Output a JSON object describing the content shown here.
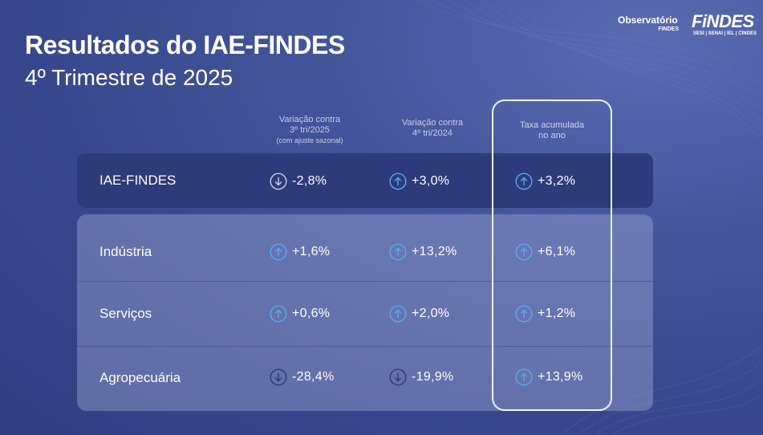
{
  "title": "Resultados do IAE-FINDES",
  "subtitle": "4º Trimestre de 2025",
  "logos": {
    "observatorio_main": "Observatório",
    "observatorio_sub": "FINDES",
    "findes_main": "FiNDES",
    "findes_sub": "SESI | SENAI | IEL | CINDES"
  },
  "columns": [
    {
      "line1": "Variação contra",
      "line2": "3º tri/2025",
      "note": "(com ajuste sazonal)"
    },
    {
      "line1": "Variação contra",
      "line2": "4º tri/2024",
      "note": ""
    },
    {
      "line1": "Taxa acumulada",
      "line2": "no ano",
      "note": ""
    }
  ],
  "rows": [
    {
      "label": "IAE-FINDES",
      "values": [
        {
          "text": "-2,8%",
          "direction": "down"
        },
        {
          "text": "+3,0%",
          "direction": "up"
        },
        {
          "text": "+3,2%",
          "direction": "up"
        }
      ]
    },
    {
      "label": "Indústria",
      "values": [
        {
          "text": "+1,6%",
          "direction": "up"
        },
        {
          "text": "+13,2%",
          "direction": "up"
        },
        {
          "text": "+6,1%",
          "direction": "up"
        }
      ]
    },
    {
      "label": "Serviços",
      "values": [
        {
          "text": "+0,6%",
          "direction": "up"
        },
        {
          "text": "+2,0%",
          "direction": "up"
        },
        {
          "text": "+1,2%",
          "direction": "up"
        }
      ]
    },
    {
      "label": "Agropecuária",
      "values": [
        {
          "text": "-28,4%",
          "direction": "down"
        },
        {
          "text": "-19,9%",
          "direction": "down"
        },
        {
          "text": "+13,9%",
          "direction": "up"
        }
      ]
    }
  ],
  "colors": {
    "up_arrow": "#5aa9f0",
    "down_arrow": "#2e3a78",
    "down_arrow_on_dark": "#c9cfe8"
  },
  "icons": {
    "up": "arrow-up-circle-icon",
    "down": "arrow-down-circle-icon"
  }
}
